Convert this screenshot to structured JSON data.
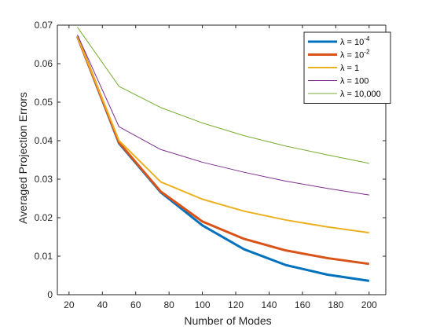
{
  "chart_data": {
    "type": "line",
    "title": "",
    "xlabel": "Number of Modes",
    "ylabel": "Averaged Projection Errors",
    "xlim": [
      13,
      210
    ],
    "ylim": [
      0,
      0.07
    ],
    "xticks": [
      20,
      40,
      60,
      80,
      100,
      120,
      140,
      160,
      180,
      200
    ],
    "yticks": [
      0,
      0.01,
      0.02,
      0.03,
      0.04,
      0.05,
      0.06,
      0.07
    ],
    "xtick_labels": [
      "20",
      "40",
      "60",
      "80",
      "100",
      "120",
      "140",
      "160",
      "180",
      "200"
    ],
    "ytick_labels": [
      "0",
      "0.01",
      "0.02",
      "0.03",
      "0.04",
      "0.05",
      "0.06",
      "0.07"
    ],
    "grid": false,
    "legend_position": "top-right",
    "x": [
      25,
      50,
      75,
      100,
      125,
      150,
      175,
      200
    ],
    "series": [
      {
        "name": "λ = 10⁻⁴",
        "legend_base": "λ = 10",
        "legend_exp": "-4",
        "color": "#0072BD",
        "line_width": "thick",
        "values": [
          0.0671,
          0.0393,
          0.0266,
          0.018,
          0.0118,
          0.0077,
          0.0052,
          0.0036
        ]
      },
      {
        "name": "λ = 10⁻²",
        "legend_base": "λ = 10",
        "legend_exp": "-2",
        "color": "#D95319",
        "line_width": "thick",
        "values": [
          0.0671,
          0.0395,
          0.0268,
          0.019,
          0.0145,
          0.0115,
          0.0095,
          0.008
        ]
      },
      {
        "name": "λ = 1",
        "legend_base": "λ = 1",
        "legend_exp": "",
        "color": "#EDB120",
        "line_width": "medium",
        "values": [
          0.0671,
          0.04,
          0.0293,
          0.0248,
          0.0217,
          0.0194,
          0.0176,
          0.0161
        ]
      },
      {
        "name": "λ = 100",
        "legend_base": "λ = 100",
        "legend_exp": "",
        "color": "#7E2F8E",
        "line_width": "thin",
        "values": [
          0.0675,
          0.0436,
          0.0377,
          0.0344,
          0.0318,
          0.0295,
          0.0276,
          0.0259
        ]
      },
      {
        "name": "λ = 10,000",
        "legend_base": "λ = 10,000",
        "legend_exp": "",
        "color": "#77AC30",
        "line_width": "thin",
        "values": [
          0.0695,
          0.0541,
          0.0486,
          0.0446,
          0.0413,
          0.0386,
          0.0363,
          0.0341
        ]
      }
    ]
  }
}
